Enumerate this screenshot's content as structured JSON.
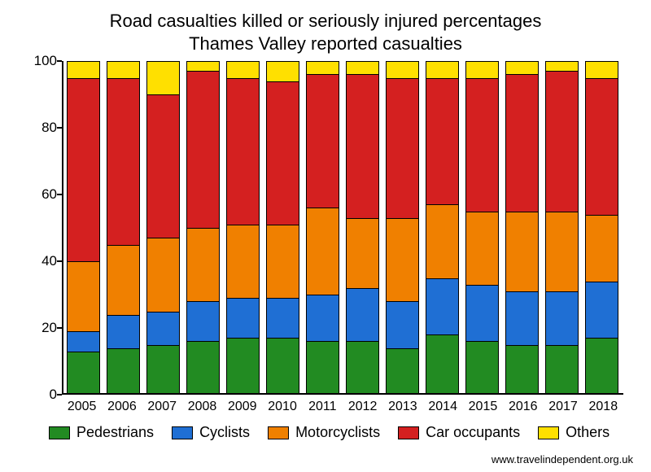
{
  "chart": {
    "type": "stacked-bar",
    "title_line1": "Road casualties killed or seriously injured percentages",
    "title_line2": "Thames Valley reported casualties",
    "title_fontsize": 22,
    "background_color": "#ffffff",
    "axis_color": "#000000",
    "label_fontsize": 17,
    "ylim": [
      0,
      100
    ],
    "ytick_step": 20,
    "yticks": [
      0,
      20,
      40,
      60,
      80,
      100
    ],
    "categories": [
      "2005",
      "2006",
      "2007",
      "2008",
      "2009",
      "2010",
      "2011",
      "2012",
      "2013",
      "2014",
      "2015",
      "2016",
      "2017",
      "2018"
    ],
    "series": [
      {
        "name": "Pedestrians",
        "color": "#228b22"
      },
      {
        "name": "Cyclists",
        "color": "#1f6fd4"
      },
      {
        "name": "Motorcyclists",
        "color": "#f08000"
      },
      {
        "name": "Car occupants",
        "color": "#d42020"
      },
      {
        "name": "Others",
        "color": "#ffe000"
      }
    ],
    "data": [
      {
        "year": "2005",
        "values": [
          13,
          6,
          21,
          55,
          5
        ]
      },
      {
        "year": "2006",
        "values": [
          14,
          10,
          21,
          50,
          5
        ]
      },
      {
        "year": "2007",
        "values": [
          15,
          10,
          22,
          43,
          10
        ]
      },
      {
        "year": "2008",
        "values": [
          16,
          12,
          22,
          47,
          3
        ]
      },
      {
        "year": "2009",
        "values": [
          17,
          12,
          22,
          44,
          5
        ]
      },
      {
        "year": "2010",
        "values": [
          17,
          12,
          22,
          43,
          6
        ]
      },
      {
        "year": "2011",
        "values": [
          16,
          14,
          26,
          40,
          4
        ]
      },
      {
        "year": "2012",
        "values": [
          16,
          16,
          21,
          43,
          4
        ]
      },
      {
        "year": "2013",
        "values": [
          14,
          14,
          25,
          42,
          5
        ]
      },
      {
        "year": "2014",
        "values": [
          18,
          17,
          22,
          38,
          5
        ]
      },
      {
        "year": "2015",
        "values": [
          16,
          17,
          22,
          40,
          5
        ]
      },
      {
        "year": "2016",
        "values": [
          15,
          16,
          24,
          41,
          4
        ]
      },
      {
        "year": "2017",
        "values": [
          15,
          16,
          24,
          42,
          3
        ]
      },
      {
        "year": "2018",
        "values": [
          17,
          17,
          20,
          41,
          5
        ]
      }
    ],
    "bar_width_ratio": 0.84
  },
  "footer": {
    "text": "www.travelindependent.org.uk"
  }
}
